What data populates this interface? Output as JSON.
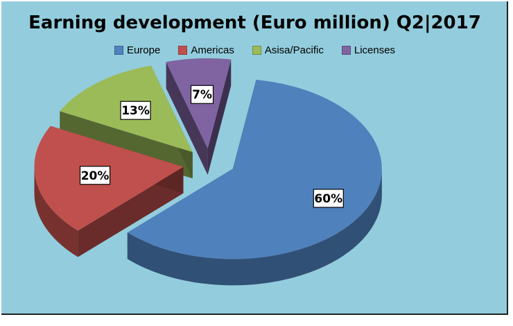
{
  "chart_data": {
    "type": "pie",
    "title": "Earning development (Euro million) Q2|2017",
    "categories": [
      "Europe",
      "Americas",
      "Asisa/Pacific",
      "Licenses"
    ],
    "values": [
      60,
      20,
      13,
      7
    ],
    "labels": [
      "60%",
      "20%",
      "13%",
      "7%"
    ],
    "colors": [
      "#4f81bd",
      "#c0504d",
      "#9bbb59",
      "#8064a2"
    ],
    "legend": "top",
    "exploded": true,
    "style": "3d"
  }
}
